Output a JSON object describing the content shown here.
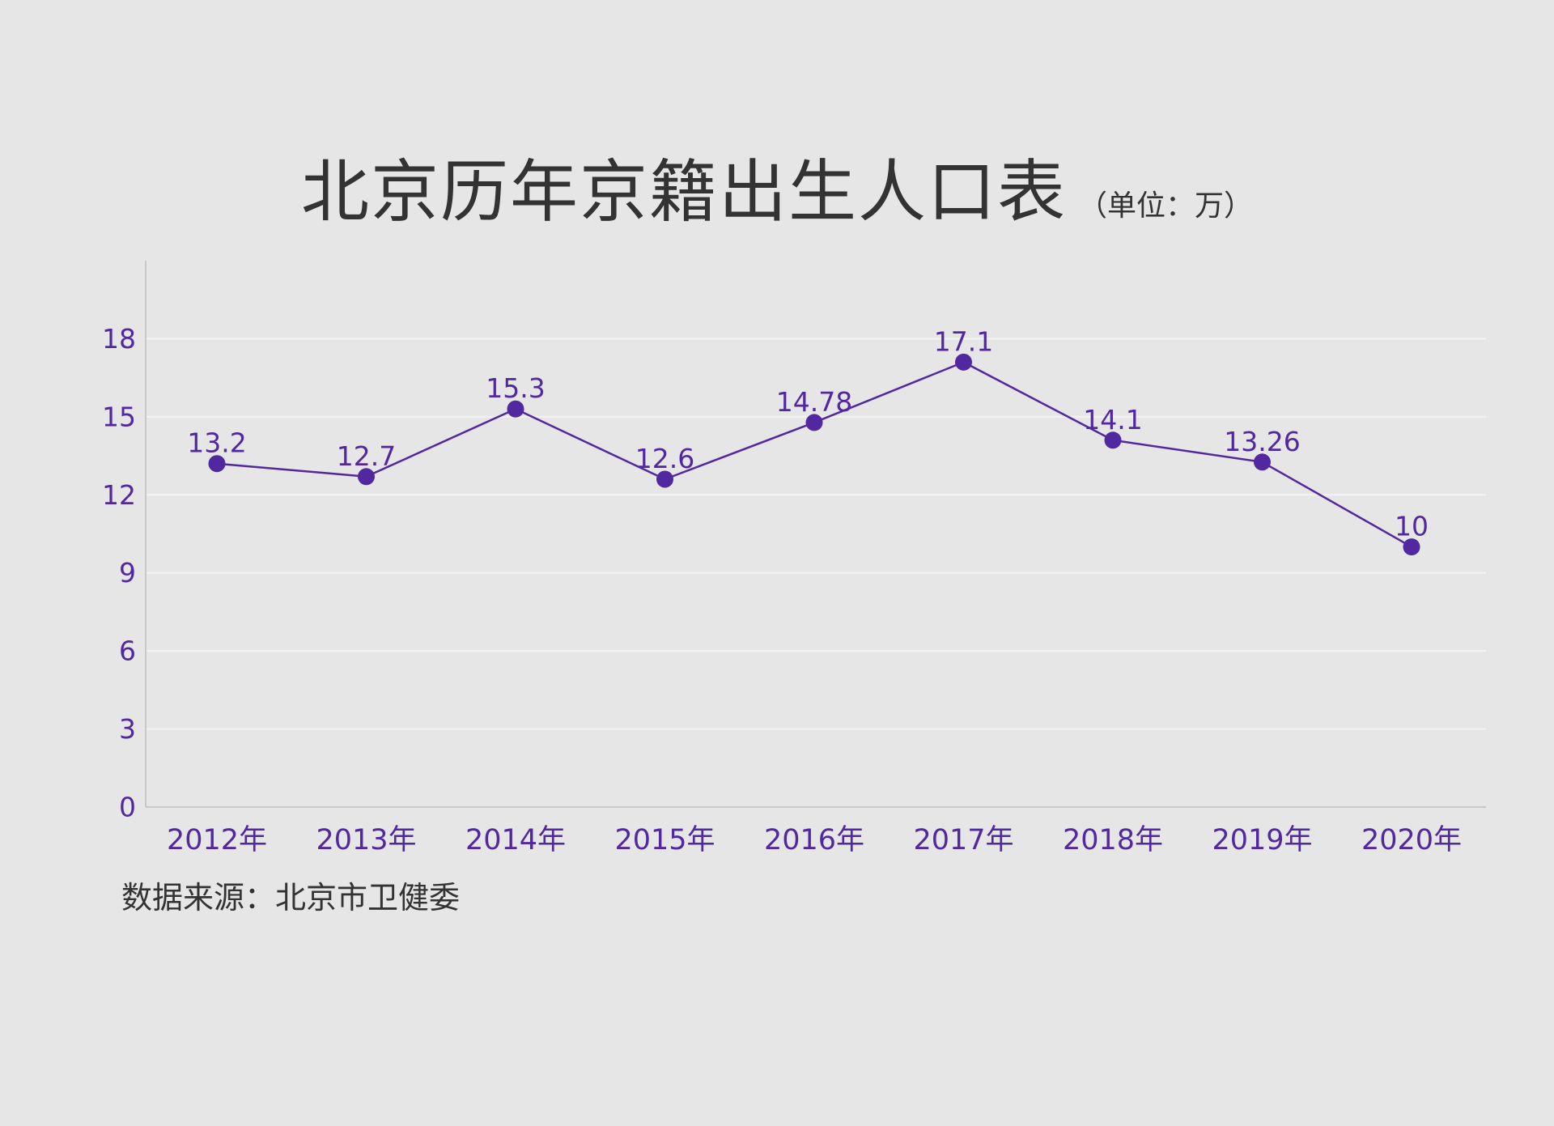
{
  "title": "北京历年京籍出生人口表",
  "unit": "（单位：万）",
  "source": "数据来源：北京市卫健委",
  "colors": {
    "accent": "#5128a0",
    "axis": "#c8c8c8",
    "grid": "#f3f3f3",
    "text": "#333333",
    "background": "#e6e6e6"
  },
  "chart_data": {
    "type": "line",
    "categories": [
      "2012年",
      "2013年",
      "2014年",
      "2015年",
      "2016年",
      "2017年",
      "2018年",
      "2019年",
      "2020年"
    ],
    "series": [
      {
        "values": [
          13.2,
          12.7,
          15.3,
          12.6,
          14.78,
          17.1,
          14.1,
          13.26,
          10
        ],
        "labels": [
          "13.2",
          "12.7",
          "15.3",
          "12.6",
          "14.78",
          "17.1",
          "14.1",
          "13.26",
          "10"
        ]
      }
    ],
    "ylim": [
      0,
      21
    ],
    "yticks": [
      0,
      3,
      6,
      9,
      12,
      15,
      18
    ],
    "grid": true,
    "legend": "none",
    "markers": "circle"
  }
}
